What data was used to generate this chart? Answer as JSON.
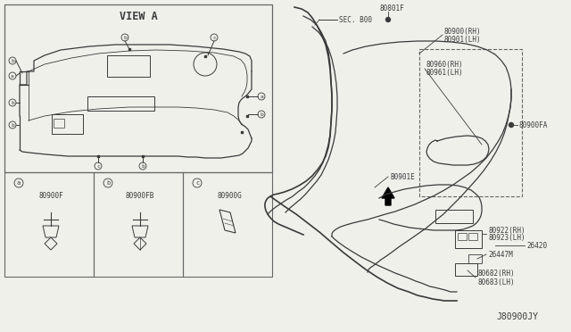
{
  "bg_color": "#f0f0eb",
  "line_color": "#3a3a3a",
  "border_color": "#666666",
  "diagram_code": "J80900JY",
  "labels": {
    "view_a": "VIEW A",
    "sec_b00": "SEC. B00",
    "l80801F": "80801F",
    "l80900_rh": "80900(RH)",
    "l80901_lh": "80901(LH)",
    "l80960_rh": "80960(RH)",
    "l80961_lh": "80961(LH)",
    "l80900FA": "80900FA",
    "l80901E": "B0901E",
    "l80922_rh": "80922(RH)",
    "l80923_lh": "80923(LH)",
    "l26420": "26420",
    "l26447M": "26447M",
    "l80682_rh": "80682(RH)",
    "l80683_lh": "80683(LH)",
    "l80900F": "80900F",
    "l80900FB": "80900FB",
    "l80900G": "80900G"
  },
  "fs_tiny": 4.5,
  "fs_small": 5.5,
  "fs_med": 7.0,
  "fs_large": 8.5,
  "lw_main": 0.9,
  "lw_thin": 0.6,
  "lw_thick": 1.2
}
